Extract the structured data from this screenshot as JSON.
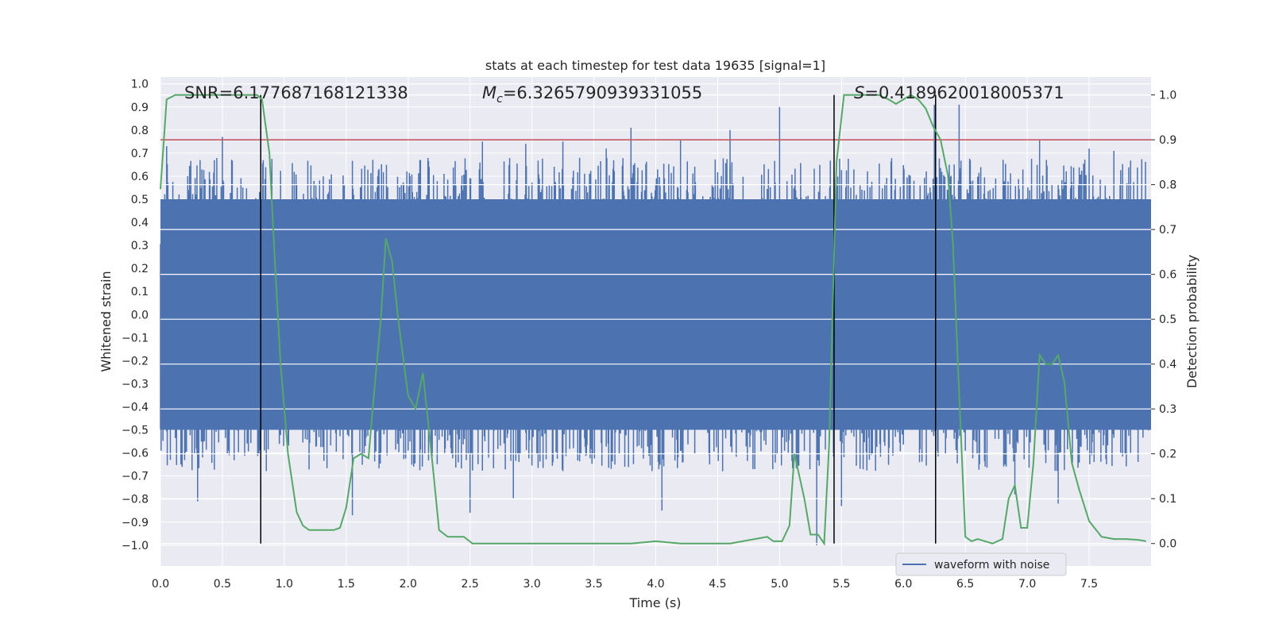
{
  "chart_data": {
    "type": "line",
    "title": "stats at each timestep for test data 19635 [signal=1]",
    "xlabel": "Time (s)",
    "ylabel": "Whitened strain",
    "ylabel_right": "Detection probability",
    "xlim": [
      0,
      8
    ],
    "ylim": [
      -1.09,
      1.03
    ],
    "ylim_right": [
      -0.05,
      1.04
    ],
    "x_ticks": [
      "0.0",
      "0.5",
      "1.0",
      "1.5",
      "2.0",
      "2.5",
      "3.0",
      "3.5",
      "4.0",
      "4.5",
      "5.0",
      "5.5",
      "6.0",
      "6.5",
      "7.0",
      "7.5"
    ],
    "y_ticks": [
      "1.0",
      "0.9",
      "0.8",
      "0.7",
      "0.6",
      "0.5",
      "0.4",
      "0.3",
      "0.2",
      "0.1",
      "0.0",
      "−0.1",
      "−0.2",
      "−0.3",
      "−0.4",
      "−0.5",
      "−0.6",
      "−0.7",
      "−0.8",
      "−0.9",
      "−1.0"
    ],
    "y_right_ticks": [
      "1.0",
      "0.9",
      "0.8",
      "0.7",
      "0.6",
      "0.5",
      "0.4",
      "0.3",
      "0.2",
      "0.1",
      "0.0"
    ],
    "grid": true,
    "legend_placement": "lower-right",
    "annotations": {
      "snr": "SNR=6.177687168121338",
      "mc_prefix": "M",
      "mc_sub": "c",
      "mc_value": "=6.3265790939331055",
      "s_prefix": "S",
      "s_value": "=0.4189620018005371"
    },
    "threshold": {
      "axis": "right",
      "value": 0.9,
      "color": "#c44e52"
    },
    "vlines": [
      0.81,
      5.44,
      6.26
    ],
    "series": [
      {
        "name": "waveform with noise",
        "axis": "left",
        "color": "#4c72b0",
        "style": "noise",
        "duration": 8.0,
        "envelope_pos": 0.5,
        "envelope_neg": -0.5,
        "spikes": [
          [
            0.05,
            0.73
          ],
          [
            0.3,
            -0.81
          ],
          [
            0.5,
            0.77
          ],
          [
            0.8,
            -0.52
          ],
          [
            1.15,
            0.5
          ],
          [
            1.55,
            -0.87
          ],
          [
            2.1,
            0.67
          ],
          [
            2.5,
            -0.86
          ],
          [
            2.6,
            0.75
          ],
          [
            2.85,
            -0.8
          ],
          [
            2.95,
            0.74
          ],
          [
            3.25,
            0.75
          ],
          [
            3.6,
            0.72
          ],
          [
            3.75,
            -0.66
          ],
          [
            3.8,
            0.81
          ],
          [
            4.05,
            -0.85
          ],
          [
            4.2,
            0.76
          ],
          [
            4.6,
            0.8
          ],
          [
            5.0,
            0.9
          ],
          [
            5.3,
            -1.0
          ],
          [
            5.5,
            -0.83
          ],
          [
            6.25,
            0.91
          ],
          [
            6.45,
            0.91
          ],
          [
            6.9,
            -0.78
          ],
          [
            7.1,
            0.76
          ],
          [
            7.25,
            -0.82
          ],
          [
            7.5,
            0.72
          ],
          [
            7.7,
            0.71
          ]
        ]
      },
      {
        "name": "Detection probability",
        "axis": "right",
        "color": "#55a868",
        "x": [
          0.0,
          0.05,
          0.12,
          0.2,
          0.3,
          0.4,
          0.5,
          0.6,
          0.7,
          0.78,
          0.82,
          0.88,
          0.92,
          0.97,
          1.03,
          1.1,
          1.15,
          1.2,
          1.3,
          1.4,
          1.45,
          1.5,
          1.56,
          1.62,
          1.68,
          1.72,
          1.78,
          1.82,
          1.87,
          1.92,
          2.0,
          2.06,
          2.12,
          2.2,
          2.25,
          2.32,
          2.45,
          2.52,
          2.6,
          2.8,
          3.0,
          3.2,
          3.4,
          3.6,
          3.8,
          4.0,
          4.2,
          4.4,
          4.6,
          4.8,
          4.9,
          4.95,
          5.02,
          5.08,
          5.12,
          5.16,
          5.2,
          5.25,
          5.31,
          5.36,
          5.4,
          5.46,
          5.52,
          5.6,
          5.7,
          5.8,
          5.88,
          5.94,
          6.0,
          6.06,
          6.12,
          6.18,
          6.24,
          6.3,
          6.36,
          6.4,
          6.44,
          6.5,
          6.55,
          6.6,
          6.66,
          6.72,
          6.8,
          6.85,
          6.9,
          6.95,
          7.0,
          7.05,
          7.1,
          7.15,
          7.2,
          7.25,
          7.3,
          7.36,
          7.42,
          7.5,
          7.6,
          7.7,
          7.8,
          7.9,
          7.96
        ],
        "y": [
          0.79,
          0.99,
          1.0,
          1.0,
          1.0,
          1.0,
          1.0,
          1.0,
          1.0,
          1.0,
          0.99,
          0.87,
          0.65,
          0.4,
          0.2,
          0.07,
          0.04,
          0.03,
          0.03,
          0.03,
          0.035,
          0.08,
          0.19,
          0.2,
          0.19,
          0.32,
          0.5,
          0.68,
          0.63,
          0.5,
          0.33,
          0.3,
          0.38,
          0.17,
          0.03,
          0.015,
          0.015,
          0.0,
          0.0,
          0.0,
          0.0,
          0.0,
          0.0,
          0.0,
          0.0,
          0.005,
          0.0,
          0.0,
          0.0,
          0.01,
          0.015,
          0.005,
          0.005,
          0.04,
          0.2,
          0.15,
          0.1,
          0.02,
          0.02,
          0.0,
          0.22,
          0.85,
          1.0,
          1.0,
          1.0,
          1.0,
          0.99,
          0.98,
          0.99,
          1.0,
          0.99,
          0.97,
          0.93,
          0.9,
          0.82,
          0.67,
          0.4,
          0.015,
          0.005,
          0.01,
          0.005,
          0.0,
          0.01,
          0.1,
          0.13,
          0.035,
          0.035,
          0.18,
          0.42,
          0.4,
          0.4,
          0.42,
          0.36,
          0.18,
          0.12,
          0.05,
          0.015,
          0.01,
          0.01,
          0.008,
          0.005
        ]
      }
    ]
  }
}
